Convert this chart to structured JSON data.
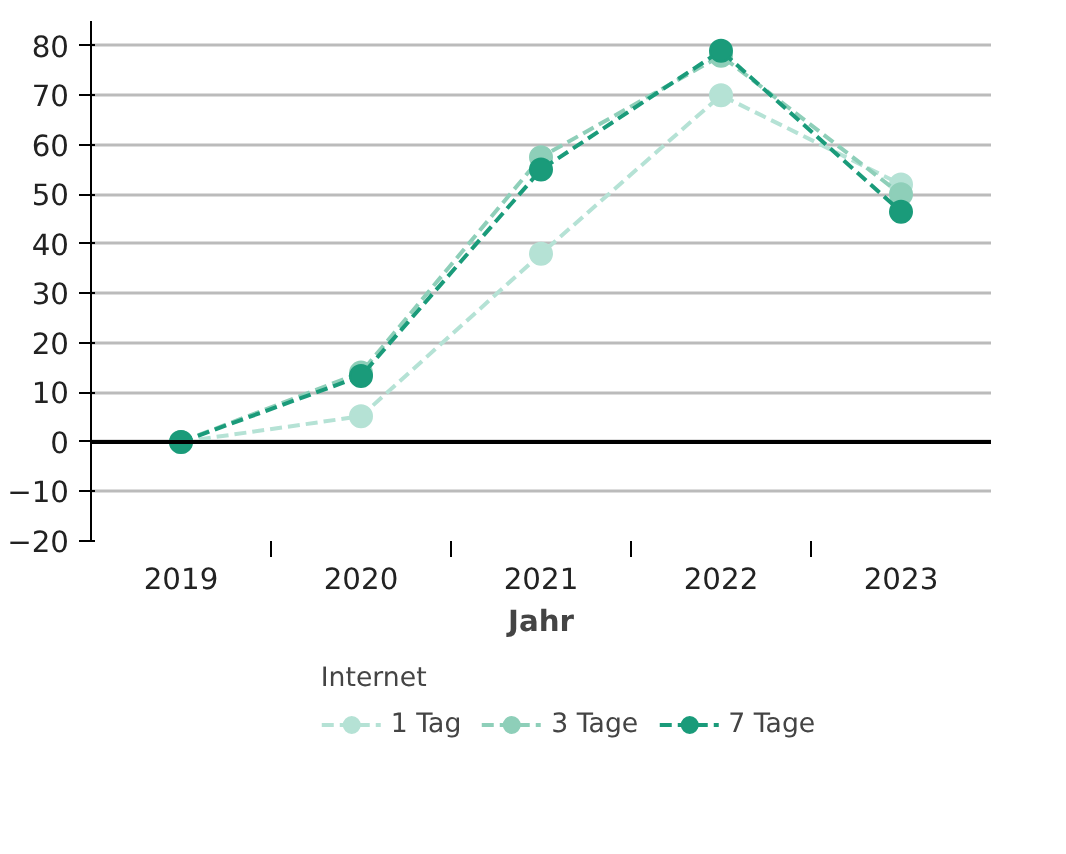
{
  "chart_data": {
    "type": "line",
    "xlabel": "Jahr",
    "legend_title": "Internet",
    "categories": [
      "2019",
      "2020",
      "2021",
      "2022",
      "2023"
    ],
    "series": [
      {
        "name": "1 Tag",
        "color": "#b5e2d5",
        "values": [
          0,
          5.2,
          38,
          70,
          52
        ]
      },
      {
        "name": "3 Tage",
        "color": "#8ecfb9",
        "values": [
          0,
          14,
          57.5,
          78,
          50
        ]
      },
      {
        "name": "7 Tage",
        "color": "#1a9b7a",
        "values": [
          0,
          13.3,
          55,
          79,
          46.5
        ]
      }
    ],
    "ylim": [
      -20,
      85
    ],
    "yticks": [
      -20,
      -10,
      0,
      10,
      20,
      30,
      40,
      50,
      60,
      70,
      80
    ],
    "ref_lines": [
      {
        "axis": "y",
        "value": 0,
        "color": "#000000"
      }
    ],
    "grid": "y",
    "legend": "bottom",
    "marker": "circle",
    "line_style": "dashed"
  }
}
